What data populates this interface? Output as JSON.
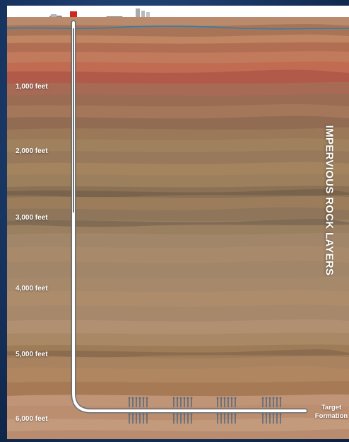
{
  "title": "IMPERVIOUS ROCK LAYERS",
  "depth_labels": [
    {
      "text": "1,000 feet"
    },
    {
      "text": "2,000 feet"
    },
    {
      "text": "3,000 feet"
    },
    {
      "text": "4,000 feet"
    },
    {
      "text": "5,000 feet"
    },
    {
      "text": "6,000 feet"
    }
  ],
  "target_formation": {
    "line1": "Target",
    "line2": "Formation"
  },
  "colors": {
    "sky": "#ffffff",
    "water_table": "#2f7fae",
    "well_casing": "#ffffff",
    "fracture_marks": "#5a6a7c",
    "well_head": "#cc2a1e",
    "background": "#16325d"
  },
  "icons": [
    "drill-rig-icon",
    "truck-icon",
    "tank-icon"
  ]
}
